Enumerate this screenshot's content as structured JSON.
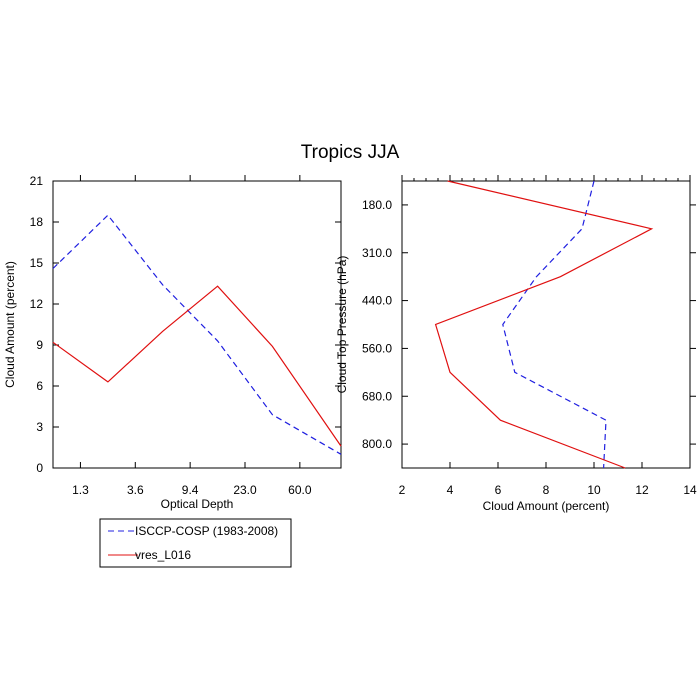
{
  "figure_title": "Tropics JJA",
  "colors": {
    "isccp": "#2020e0",
    "model": "#e01010",
    "axis": "#000000"
  },
  "chart_data": [
    {
      "type": "line",
      "id": "optical-depth",
      "title": "",
      "xlabel": "Optical Depth",
      "ylabel": "Cloud Amount (percent)",
      "x_tick_labels": [
        "1.3",
        "3.6",
        "9.4",
        "23.0",
        "60.0"
      ],
      "x_tick_index": [
        0.5,
        1.5,
        2.5,
        3.5,
        4.5
      ],
      "x_index_range": [
        0,
        5.25
      ],
      "ylim": [
        0,
        21
      ],
      "y_ticks": [
        0,
        3,
        6,
        9,
        12,
        15,
        18,
        21
      ],
      "x_index": [
        0,
        1,
        2,
        3,
        4,
        5.25
      ],
      "series": [
        {
          "name": "ISCCP-COSP (1983-2008)",
          "style": "dashed",
          "values": [
            14.6,
            18.5,
            13.4,
            9.3,
            3.9,
            1.0
          ]
        },
        {
          "name": "vres_L016",
          "style": "solid",
          "values": [
            9.2,
            6.3,
            10.0,
            13.3,
            8.9,
            1.6
          ]
        }
      ]
    },
    {
      "type": "line",
      "id": "cloud-top-pressure",
      "title": "",
      "xlabel": "Cloud Amount (percent)",
      "ylabel": "Cloud Top Pressure (hPa)",
      "xlim": [
        2,
        14
      ],
      "x_ticks": [
        2,
        4,
        6,
        8,
        10,
        12,
        14
      ],
      "y_tick_labels": [
        "180.0",
        "310.0",
        "440.0",
        "560.0",
        "680.0",
        "800.0"
      ],
      "y_tick_index": [
        0.5,
        1.5,
        2.5,
        3.5,
        4.5,
        5.5
      ],
      "y_index_range": [
        0,
        6
      ],
      "y_index": [
        0,
        1,
        2,
        3,
        4,
        5,
        6
      ],
      "series": [
        {
          "name": "ISCCP-COSP (1983-2008)",
          "style": "dashed",
          "values": [
            10.0,
            9.5,
            7.6,
            6.2,
            6.7,
            10.5,
            10.4
          ]
        },
        {
          "name": "vres_L016",
          "style": "solid",
          "values": [
            3.9,
            12.4,
            8.6,
            3.4,
            4.0,
            6.1,
            11.3
          ]
        }
      ]
    }
  ],
  "legend": [
    {
      "label": "ISCCP-COSP (1983-2008)",
      "style": "dashed"
    },
    {
      "label": "vres_L016",
      "style": "solid"
    }
  ]
}
